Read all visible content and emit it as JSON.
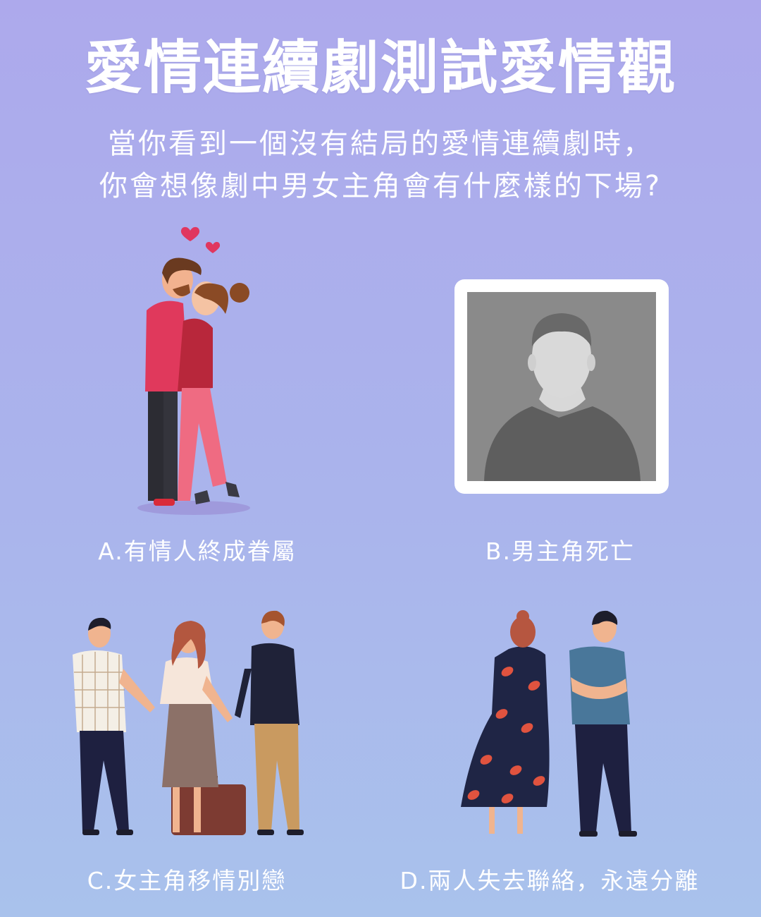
{
  "header": {
    "title": "愛情連續劇測試愛情觀",
    "subtitle_line1": "當你看到一個沒有結局的愛情連續劇時，",
    "subtitle_line2": "你會想像劇中男女主角會有什麼樣的下場?"
  },
  "options": {
    "a": {
      "label": "A.有情人終成眷屬",
      "icon": "kissing-couple-illustration"
    },
    "b": {
      "label": "B.男主角死亡",
      "icon": "memorial-portrait-silhouette"
    },
    "c": {
      "label": "C.女主角移情別戀",
      "icon": "love-triangle-illustration"
    },
    "d": {
      "label": "D.兩人失去聯絡，永遠分離",
      "icon": "separated-couple-illustration"
    }
  },
  "colors": {
    "background_top": "#ada9ec",
    "background_bottom": "#a9c2ec",
    "text": "#ffffff",
    "heart": "#e0365f"
  }
}
